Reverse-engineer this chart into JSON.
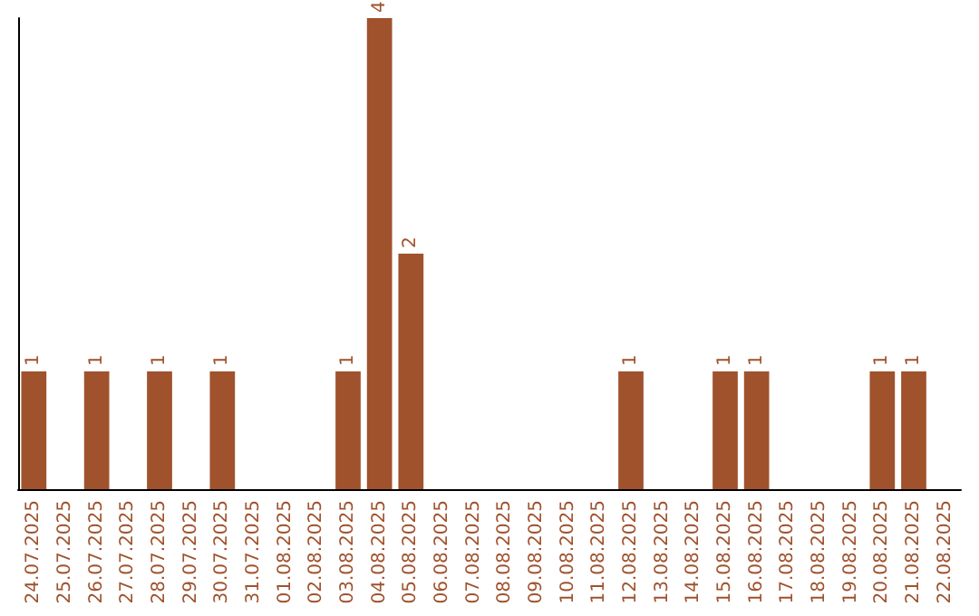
{
  "chart_data": {
    "type": "bar",
    "categories": [
      "24.07.2025",
      "25.07.2025",
      "26.07.2025",
      "27.07.2025",
      "28.07.2025",
      "29.07.2025",
      "30.07.2025",
      "31.07.2025",
      "01.08.2025",
      "02.08.2025",
      "03.08.2025",
      "04.08.2025",
      "05.08.2025",
      "06.08.2025",
      "07.08.2025",
      "08.08.2025",
      "09.08.2025",
      "10.08.2025",
      "11.08.2025",
      "12.08.2025",
      "13.08.2025",
      "14.08.2025",
      "15.08.2025",
      "16.08.2025",
      "17.08.2025",
      "18.08.2025",
      "19.08.2025",
      "20.08.2025",
      "21.08.2025",
      "22.08.2025"
    ],
    "values": [
      1,
      0,
      1,
      0,
      1,
      0,
      1,
      0,
      0,
      0,
      1,
      4,
      2,
      0,
      0,
      0,
      0,
      0,
      0,
      1,
      0,
      0,
      1,
      1,
      0,
      0,
      0,
      1,
      1,
      0
    ],
    "value_labels": [
      "1",
      null,
      "1",
      null,
      "1",
      null,
      "1",
      null,
      null,
      null,
      "1",
      "4",
      "2",
      null,
      null,
      null,
      null,
      null,
      null,
      "1",
      null,
      null,
      "1",
      "1",
      null,
      null,
      null,
      "1",
      "1",
      null
    ],
    "color": "#a0522d",
    "grid": false
  }
}
